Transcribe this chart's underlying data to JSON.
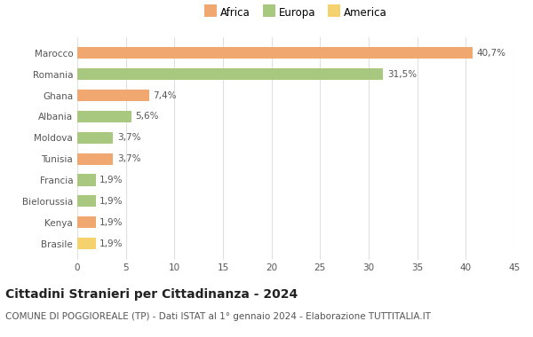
{
  "categories": [
    "Brasile",
    "Kenya",
    "Bielorussia",
    "Francia",
    "Tunisia",
    "Moldova",
    "Albania",
    "Ghana",
    "Romania",
    "Marocco"
  ],
  "values": [
    1.9,
    1.9,
    1.9,
    1.9,
    3.7,
    3.7,
    5.6,
    7.4,
    31.5,
    40.7
  ],
  "labels": [
    "1,9%",
    "1,9%",
    "1,9%",
    "1,9%",
    "3,7%",
    "3,7%",
    "5,6%",
    "7,4%",
    "31,5%",
    "40,7%"
  ],
  "colors": [
    "#f5d26e",
    "#f0a870",
    "#a8c880",
    "#a8c880",
    "#f0a870",
    "#a8c880",
    "#a8c880",
    "#f0a870",
    "#a8c880",
    "#f0a870"
  ],
  "legend": [
    {
      "label": "Africa",
      "color": "#f0a870"
    },
    {
      "label": "Europa",
      "color": "#a8c880"
    },
    {
      "label": "America",
      "color": "#f5d26e"
    }
  ],
  "xlim": [
    0,
    45
  ],
  "xticks": [
    0,
    5,
    10,
    15,
    20,
    25,
    30,
    35,
    40,
    45
  ],
  "title": "Cittadini Stranieri per Cittadinanza - 2024",
  "subtitle": "COMUNE DI POGGIOREALE (TP) - Dati ISTAT al 1° gennaio 2024 - Elaborazione TUTTITALIA.IT",
  "title_fontsize": 10,
  "subtitle_fontsize": 7.5,
  "label_fontsize": 7.5,
  "tick_fontsize": 7.5,
  "bar_height": 0.55,
  "background_color": "#ffffff",
  "grid_color": "#e0e0e0"
}
